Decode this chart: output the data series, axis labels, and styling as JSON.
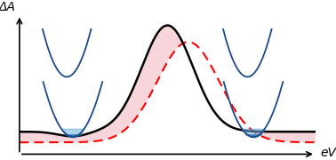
{
  "title": "",
  "xlabel": "eV",
  "ylabel": "ΔA",
  "background": "#ffffff",
  "black_line_color": "#000000",
  "red_dashed_color": "#ff0000",
  "fill_color": "#f0a0b0",
  "fill_alpha": 0.45,
  "axis_color": "#000000",
  "label_fontsize": 10,
  "bowl_color": "#1a4a8a",
  "xlim": [
    0,
    10
  ],
  "ylim": [
    -0.22,
    1.0
  ]
}
